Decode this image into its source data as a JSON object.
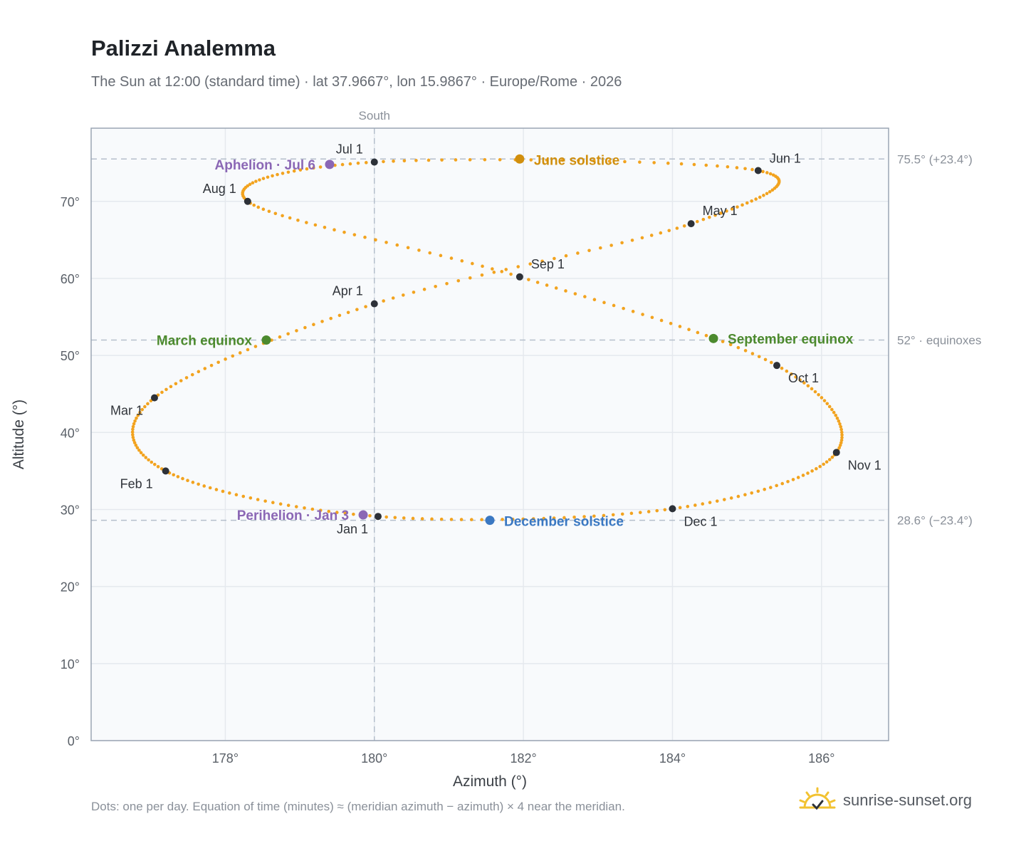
{
  "header": {
    "title": "Palizzi Analemma",
    "subtitle": "The Sun at 12:00 (standard time) · lat 37.9667°, lon 15.9867° · Europe/Rome · 2026"
  },
  "footer": {
    "note": "Dots: one per day. Equation of time (minutes) ≈ (meridian azimuth − azimuth) × 4 near the meridian.",
    "brand": "sunrise-sunset.org",
    "brand_icon": "sun-check-icon"
  },
  "chart_data": {
    "type": "scatter",
    "xlabel": "Azimuth (°)",
    "ylabel": "Altitude (°)",
    "xlim": [
      176.2,
      186.9
    ],
    "ylim": [
      0,
      79.5
    ],
    "x_ticks": [
      {
        "value": 178,
        "label": "178°"
      },
      {
        "value": 180,
        "label": "180°"
      },
      {
        "value": 182,
        "label": "182°"
      },
      {
        "value": 184,
        "label": "184°"
      },
      {
        "value": 186,
        "label": "186°"
      }
    ],
    "y_ticks": [
      {
        "value": 0,
        "label": "0°"
      },
      {
        "value": 10,
        "label": "10°"
      },
      {
        "value": 20,
        "label": "20°"
      },
      {
        "value": 30,
        "label": "30°"
      },
      {
        "value": 40,
        "label": "40°"
      },
      {
        "value": 50,
        "label": "50°"
      },
      {
        "value": 60,
        "label": "60°"
      },
      {
        "value": 70,
        "label": "70°"
      }
    ],
    "grid": true,
    "meridian": {
      "value": 180,
      "label": "South"
    },
    "reference_lines": [
      {
        "value": 75.5,
        "label": "75.5° (+23.4°)"
      },
      {
        "value": 52,
        "label": "52° · equinoxes"
      },
      {
        "value": 28.6,
        "label": "28.6° (−23.4°)"
      }
    ],
    "month_points": [
      {
        "label": "Jan 1",
        "x": 180.05,
        "y": 29.1
      },
      {
        "label": "Feb 1",
        "x": 177.2,
        "y": 35.0
      },
      {
        "label": "Mar 1",
        "x": 177.05,
        "y": 44.5
      },
      {
        "label": "Apr 1",
        "x": 180.0,
        "y": 56.7
      },
      {
        "label": "May 1",
        "x": 184.25,
        "y": 67.1
      },
      {
        "label": "Jun 1",
        "x": 185.15,
        "y": 74.0
      },
      {
        "label": "Jul 1",
        "x": 180.0,
        "y": 75.1
      },
      {
        "label": "Aug 1",
        "x": 178.3,
        "y": 70.0
      },
      {
        "label": "Sep 1",
        "x": 181.95,
        "y": 60.2
      },
      {
        "label": "Oct 1",
        "x": 185.4,
        "y": 48.7
      },
      {
        "label": "Nov 1",
        "x": 186.2,
        "y": 37.4
      },
      {
        "label": "Dec 1",
        "x": 184.0,
        "y": 30.1
      }
    ],
    "events": [
      {
        "label": "Perihelion · Jan 3",
        "x": 179.85,
        "y": 29.3,
        "color": "#8b67b5"
      },
      {
        "label": "March equinox",
        "x": 178.55,
        "y": 52.0,
        "color": "#4c8a2e"
      },
      {
        "label": "June solstice",
        "x": 181.95,
        "y": 75.5,
        "color": "#d18f0d"
      },
      {
        "label": "Aphelion · Jul 6",
        "x": 179.4,
        "y": 74.8,
        "color": "#8b67b5"
      },
      {
        "label": "September equinox",
        "x": 184.55,
        "y": 52.2,
        "color": "#4c8a2e"
      },
      {
        "label": "December solstice",
        "x": 181.55,
        "y": 28.6,
        "color": "#3a78c2"
      }
    ],
    "colors": {
      "daily_dots": "#f2a31f",
      "month_marker": "#2d3138",
      "plot_background": "#f8fafc",
      "plot_border": "#9aa5b4",
      "reference_line": "#b5bfcb"
    }
  }
}
